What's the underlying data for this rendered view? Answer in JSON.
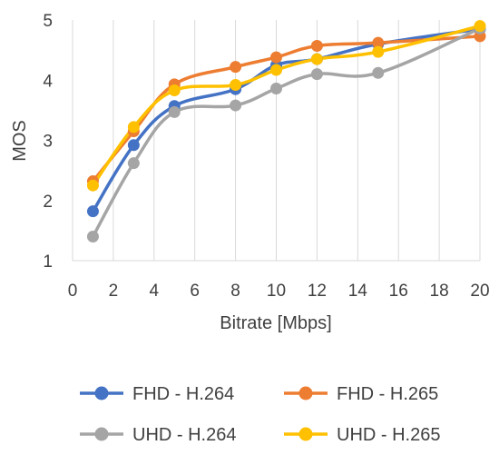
{
  "chart_data": {
    "type": "line",
    "title": "",
    "xlabel": "Bitrate [Mbps]",
    "ylabel": "MOS",
    "xlim": [
      0,
      20
    ],
    "ylim": [
      1,
      5
    ],
    "xticks": [
      0,
      2,
      4,
      6,
      8,
      10,
      12,
      14,
      16,
      18,
      20
    ],
    "yticks": [
      1,
      2,
      3,
      4,
      5
    ],
    "grid": "vertical",
    "legend_position": "bottom",
    "x": [
      1,
      3,
      5,
      8,
      10,
      12,
      15,
      20
    ],
    "series": [
      {
        "name": "FHD - H.264",
        "color": "#4472c4",
        "values": [
          1.82,
          2.92,
          3.57,
          3.85,
          4.25,
          4.35,
          4.6,
          4.85
        ]
      },
      {
        "name": "FHD - H.265",
        "color": "#ed7d31",
        "values": [
          2.32,
          3.15,
          3.93,
          4.22,
          4.38,
          4.57,
          4.62,
          4.73
        ]
      },
      {
        "name": "UHD - H.264",
        "color": "#a5a5a5",
        "values": [
          1.4,
          2.62,
          3.47,
          3.58,
          3.86,
          4.1,
          4.12,
          4.86
        ]
      },
      {
        "name": "UHD - H.265",
        "color": "#ffc000",
        "values": [
          2.25,
          3.22,
          3.83,
          3.92,
          4.17,
          4.35,
          4.47,
          4.9
        ]
      }
    ]
  }
}
